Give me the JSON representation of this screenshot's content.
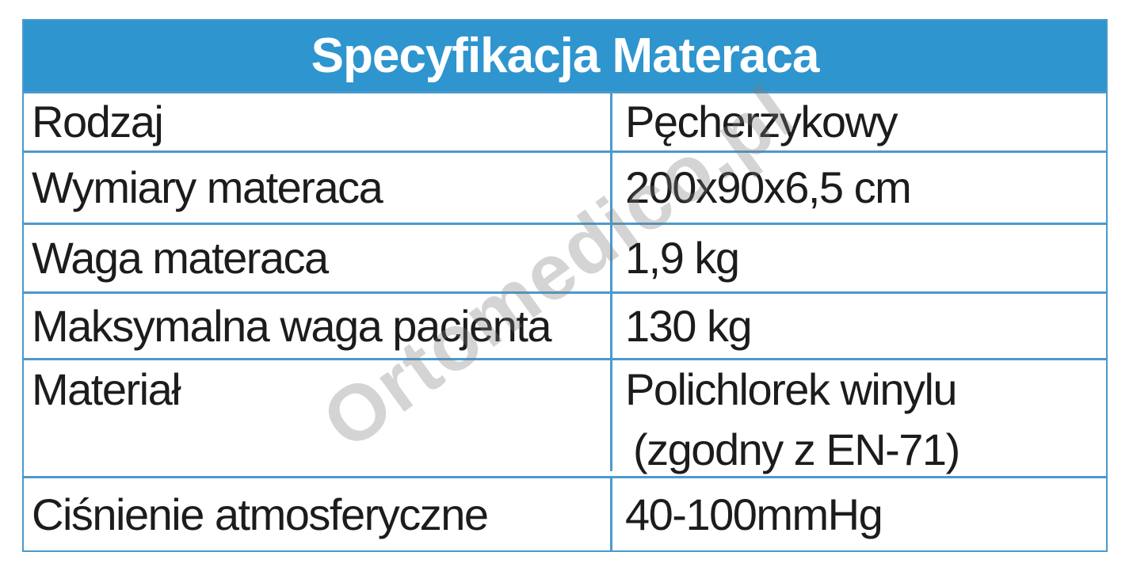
{
  "header": {
    "title": "Specyfikacja Materaca",
    "bg_color": "#2e95ce",
    "text_color": "#ffffff"
  },
  "colors": {
    "border": "#4a9acd",
    "cell_text": "#1c1c1c"
  },
  "watermark": {
    "text": "Ortomedico.pl",
    "color": "#7d7d7d"
  },
  "rows": [
    {
      "label": "Rodzaj",
      "value": "Pęcherzykowy"
    },
    {
      "label": "Wymiary materaca",
      "value": "200x90x6,5 cm"
    },
    {
      "label": "Waga materaca",
      "value": "1,9 kg"
    },
    {
      "label": "Maksymalna waga pacjenta",
      "value": "130 kg"
    },
    {
      "label": "Materiał",
      "value": "Polichlorek winylu",
      "value_line2": "(zgodny z EN-71)"
    },
    {
      "label": "Ciśnienie atmosferyczne",
      "value": "40-100mmHg"
    }
  ]
}
